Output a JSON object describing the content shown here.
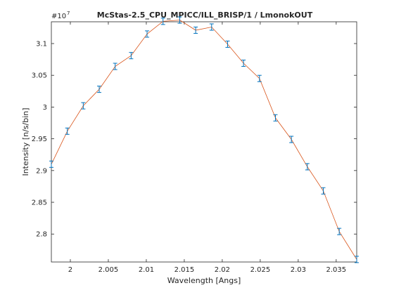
{
  "chart_data": {
    "type": "line",
    "title": "McStas-2.5_CPU_MPICC/ILL_BRISP/1 / LmonokOUT",
    "xlabel": "Wavelength [Angs]",
    "ylabel": "Intensity [n/s/bin]",
    "y_exponent_label": "#10",
    "y_exponent_power": "7",
    "xlim": [
      1.9975,
      2.0377
    ],
    "ylim": [
      2.756,
      3.1343
    ],
    "x_ticks": [
      2,
      2.005,
      2.01,
      2.015,
      2.02,
      2.025,
      2.03,
      2.035
    ],
    "x_tick_labels": [
      "2",
      "2.005",
      "2.01",
      "2.015",
      "2.02",
      "2.025",
      "2.03",
      "2.035"
    ],
    "y_ticks": [
      2.8,
      2.85,
      2.9,
      2.95,
      3.0,
      3.05,
      3.1
    ],
    "y_tick_labels": [
      "2.8",
      "2.85",
      "2.9",
      "2.95",
      "3",
      "3.05",
      "3.1"
    ],
    "grid": false,
    "line_color": "#d9541a",
    "errorbar_color": "#0072bd",
    "series": [
      {
        "x": [
          1.9975,
          1.9996,
          2.0017,
          2.0038,
          2.0059,
          2.008,
          2.0101,
          2.0122,
          2.0144,
          2.0165,
          2.0186,
          2.0207,
          2.0228,
          2.0249,
          2.027,
          2.0291,
          2.0312,
          2.0333,
          2.0354,
          2.0377
        ],
        "y": [
          2.91,
          2.962,
          3.002,
          3.028,
          3.064,
          3.081,
          3.115,
          3.135,
          3.137,
          3.121,
          3.126,
          3.099,
          3.069,
          3.045,
          2.983,
          2.949,
          2.906,
          2.868,
          2.804,
          2.76
        ],
        "err": [
          0.005,
          0.005,
          0.005,
          0.005,
          0.005,
          0.005,
          0.005,
          0.005,
          0.005,
          0.005,
          0.005,
          0.005,
          0.005,
          0.005,
          0.005,
          0.005,
          0.005,
          0.005,
          0.005,
          0.005
        ]
      }
    ]
  }
}
